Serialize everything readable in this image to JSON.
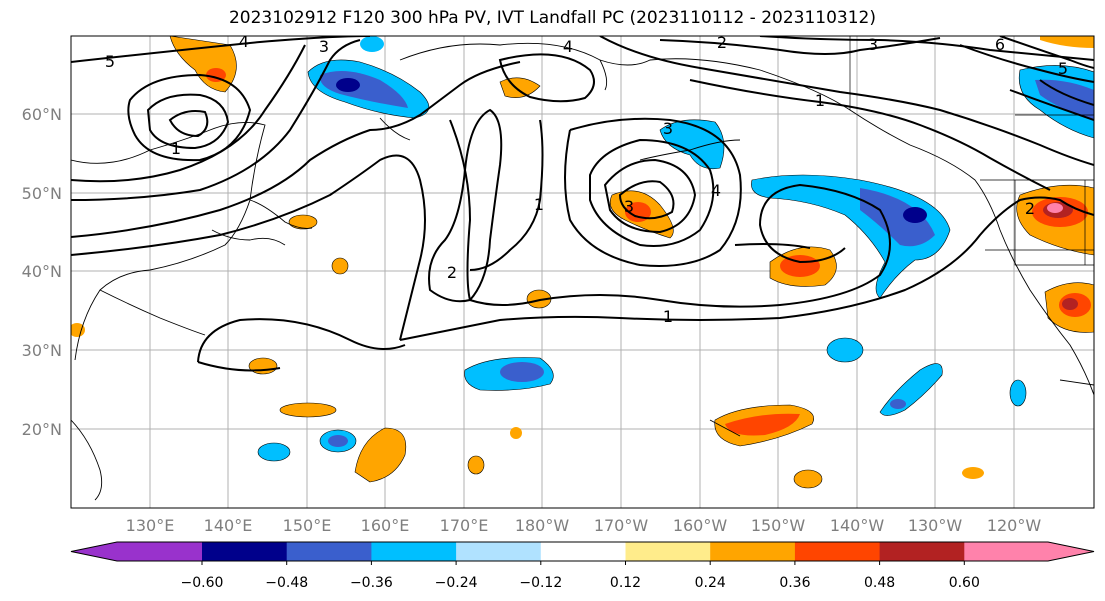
{
  "title": "2023102912 F120 300 hPa PV, IVT Landfall PC (2023110112 - 2023110312)",
  "lat_labels": [
    "60°N",
    "50°N",
    "40°N",
    "30°N",
    "20°N"
  ],
  "lon_labels": [
    "130°E",
    "140°E",
    "150°E",
    "160°E",
    "170°E",
    "180°W",
    "170°W",
    "160°W",
    "150°W",
    "140°W",
    "130°W",
    "120°W"
  ],
  "contour_labels": [
    "5",
    "4",
    "3",
    "3",
    "2",
    "1",
    "1",
    "1",
    "2",
    "2",
    "3",
    "4",
    "6",
    "5",
    "3",
    "4",
    "1"
  ],
  "colorbar": {
    "ticks": [
      "−0.60",
      "−0.48",
      "−0.36",
      "−0.24",
      "−0.12",
      "0.12",
      "0.24",
      "0.36",
      "0.48",
      "0.60"
    ],
    "colors": [
      "#9932cc",
      "#00008b",
      "#3a5fcd",
      "#00bfff",
      "#b0e2ff",
      "#ffffff",
      "#ffec8b",
      "#ffa500",
      "#ff4500",
      "#b22222",
      "#ff82ab"
    ]
  }
}
